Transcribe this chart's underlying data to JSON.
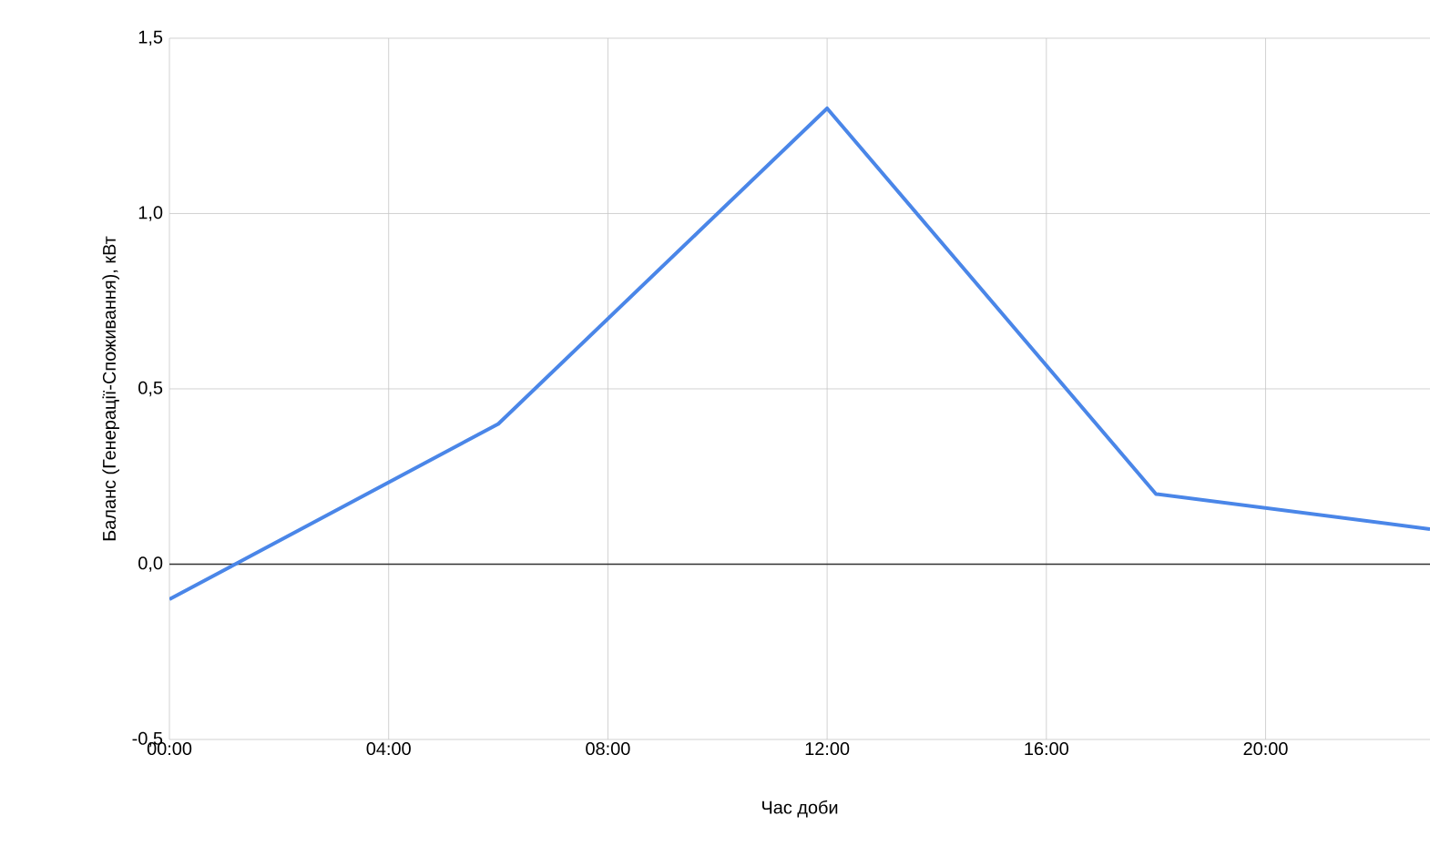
{
  "chart_data": {
    "type": "line",
    "xlabel": "Час доби",
    "ylabel": "Баланс (Генерації-Споживання), кВт",
    "x": [
      0,
      6,
      12,
      18,
      23
    ],
    "series": [
      {
        "color": "#4a86e8",
        "values": [
          -0.1,
          0.4,
          1.3,
          0.2,
          0.1
        ]
      }
    ],
    "xlim": [
      0,
      23
    ],
    "xticks": [
      {
        "value": 0,
        "label": "00:00"
      },
      {
        "value": 4,
        "label": "04:00"
      },
      {
        "value": 8,
        "label": "08:00"
      },
      {
        "value": 12,
        "label": "12:00"
      },
      {
        "value": 16,
        "label": "16:00"
      },
      {
        "value": 20,
        "label": "20:00"
      }
    ],
    "ylim": [
      -0.5,
      1.5
    ],
    "yticks": [
      {
        "value": -0.5,
        "label": "-0,5"
      },
      {
        "value": 0,
        "label": "0,0"
      },
      {
        "value": 0.5,
        "label": "0,5"
      },
      {
        "value": 1,
        "label": "1,0"
      },
      {
        "value": 1.5,
        "label": "1,5"
      }
    ],
    "ref_lines": [
      {
        "axis": "y",
        "value": 0,
        "color": "#333333"
      }
    ],
    "grid": true,
    "marker": "none",
    "line_style": "solid"
  }
}
